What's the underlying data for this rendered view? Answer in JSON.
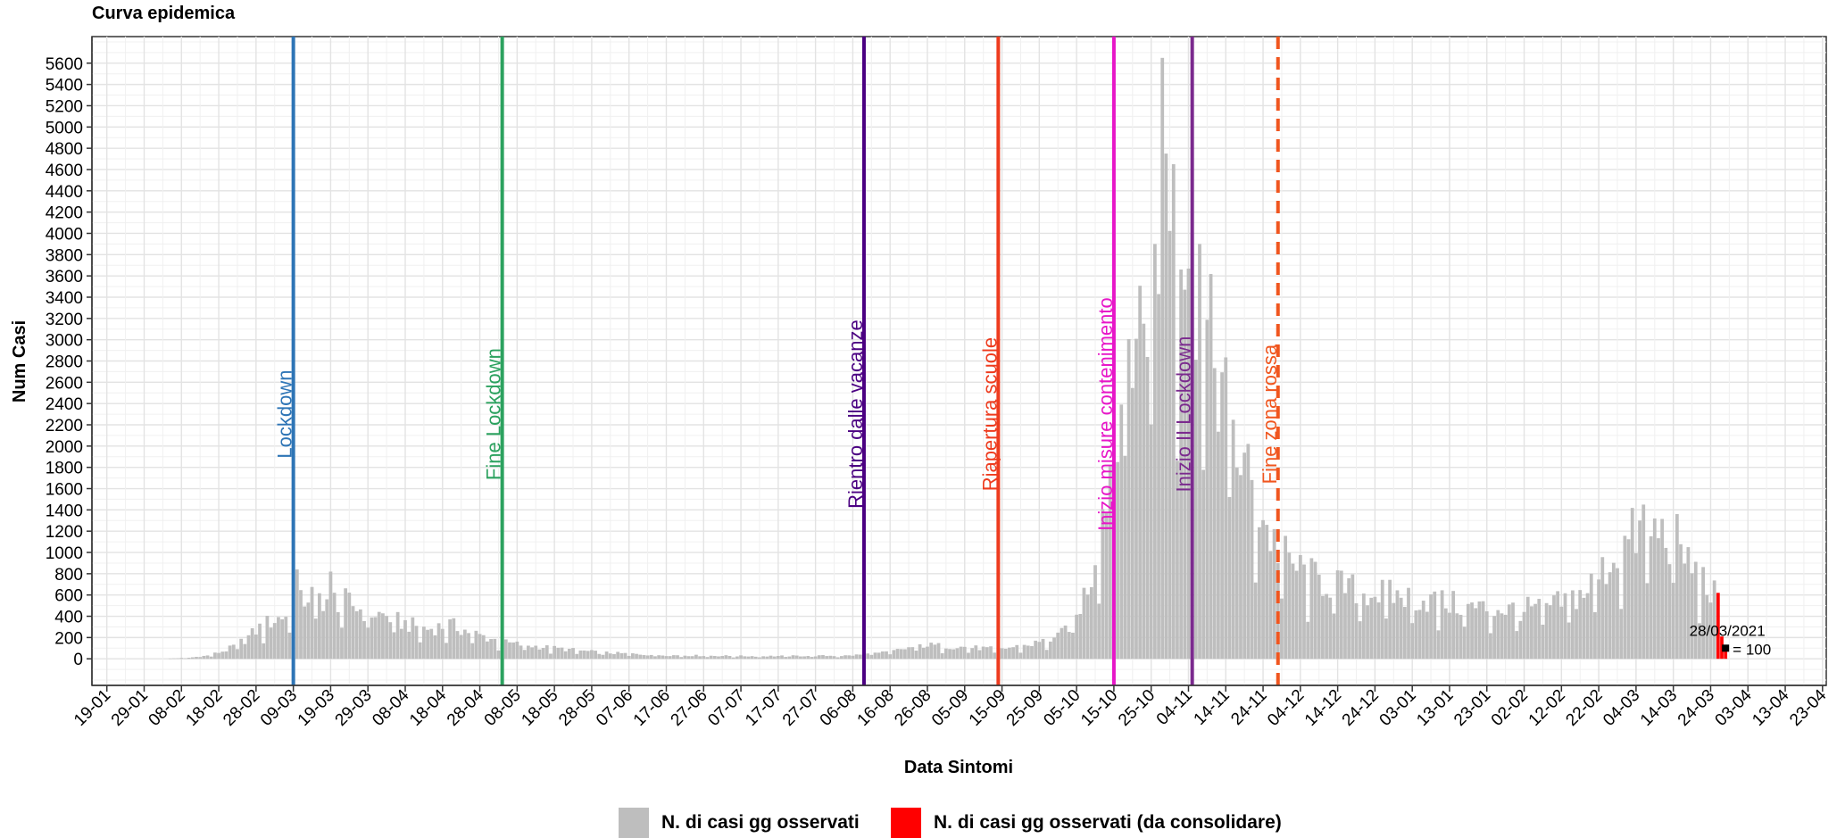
{
  "title": "Curva epidemica",
  "chart_data": {
    "type": "bar",
    "title": "Curva epidemica",
    "xlabel": "Data Sintomi",
    "ylabel": "Num Casi",
    "ylim": [
      -250,
      5850
    ],
    "yticks": [
      0,
      200,
      400,
      600,
      800,
      1000,
      1200,
      1400,
      1600,
      1800,
      2000,
      2200,
      2400,
      2600,
      2800,
      3000,
      3200,
      3400,
      3600,
      3800,
      4000,
      4200,
      4400,
      4600,
      4800,
      5000,
      5200,
      5400,
      5600
    ],
    "xlim": [
      "2020-01-15",
      "2021-04-24"
    ],
    "xticks": [
      {
        "date": "2020-01-19",
        "label": "19-01"
      },
      {
        "date": "2020-01-29",
        "label": "29-01"
      },
      {
        "date": "2020-02-08",
        "label": "08-02"
      },
      {
        "date": "2020-02-18",
        "label": "18-02"
      },
      {
        "date": "2020-02-28",
        "label": "28-02"
      },
      {
        "date": "2020-03-09",
        "label": "09-03"
      },
      {
        "date": "2020-03-19",
        "label": "19-03"
      },
      {
        "date": "2020-03-29",
        "label": "29-03"
      },
      {
        "date": "2020-04-08",
        "label": "08-04"
      },
      {
        "date": "2020-04-18",
        "label": "18-04"
      },
      {
        "date": "2020-04-28",
        "label": "28-04"
      },
      {
        "date": "2020-05-08",
        "label": "08-05"
      },
      {
        "date": "2020-05-18",
        "label": "18-05"
      },
      {
        "date": "2020-05-28",
        "label": "28-05"
      },
      {
        "date": "2020-06-07",
        "label": "07-06"
      },
      {
        "date": "2020-06-17",
        "label": "17-06"
      },
      {
        "date": "2020-06-27",
        "label": "27-06"
      },
      {
        "date": "2020-07-07",
        "label": "07-07"
      },
      {
        "date": "2020-07-17",
        "label": "17-07"
      },
      {
        "date": "2020-07-27",
        "label": "27-07"
      },
      {
        "date": "2020-08-06",
        "label": "06-08"
      },
      {
        "date": "2020-08-16",
        "label": "16-08"
      },
      {
        "date": "2020-08-26",
        "label": "26-08"
      },
      {
        "date": "2020-09-05",
        "label": "05-09"
      },
      {
        "date": "2020-09-15",
        "label": "15-09"
      },
      {
        "date": "2020-09-25",
        "label": "25-09"
      },
      {
        "date": "2020-10-05",
        "label": "05-10"
      },
      {
        "date": "2020-10-15",
        "label": "15-10"
      },
      {
        "date": "2020-10-25",
        "label": "25-10"
      },
      {
        "date": "2020-11-04",
        "label": "04-11"
      },
      {
        "date": "2020-11-14",
        "label": "14-11"
      },
      {
        "date": "2020-11-24",
        "label": "24-11"
      },
      {
        "date": "2020-12-04",
        "label": "04-12"
      },
      {
        "date": "2020-12-14",
        "label": "14-12"
      },
      {
        "date": "2020-12-24",
        "label": "24-12"
      },
      {
        "date": "2021-01-03",
        "label": "03-01"
      },
      {
        "date": "2021-01-13",
        "label": "13-01"
      },
      {
        "date": "2021-01-23",
        "label": "23-01"
      },
      {
        "date": "2021-02-02",
        "label": "02-02"
      },
      {
        "date": "2021-02-12",
        "label": "12-02"
      },
      {
        "date": "2021-02-22",
        "label": "22-02"
      },
      {
        "date": "2021-03-04",
        "label": "04-03"
      },
      {
        "date": "2021-03-14",
        "label": "14-03"
      },
      {
        "date": "2021-03-24",
        "label": "24-03"
      },
      {
        "date": "2021-04-03",
        "label": "03-04"
      },
      {
        "date": "2021-04-13",
        "label": "13-04"
      },
      {
        "date": "2021-04-23",
        "label": "23-04"
      }
    ],
    "grid": true,
    "legend_position": "bottom",
    "series": [
      {
        "name": "N. di casi gg osservati",
        "color": "#bebebe",
        "profile": [
          {
            "date": "2020-02-03",
            "value": 0
          },
          {
            "date": "2020-02-10",
            "value": 10
          },
          {
            "date": "2020-02-15",
            "value": 30
          },
          {
            "date": "2020-02-20",
            "value": 80
          },
          {
            "date": "2020-02-25",
            "value": 180
          },
          {
            "date": "2020-03-01",
            "value": 320
          },
          {
            "date": "2020-03-05",
            "value": 380
          },
          {
            "date": "2020-03-09",
            "value": 450
          },
          {
            "date": "2020-03-13",
            "value": 600
          },
          {
            "date": "2020-03-18",
            "value": 560
          },
          {
            "date": "2020-03-22",
            "value": 550
          },
          {
            "date": "2020-03-28",
            "value": 450
          },
          {
            "date": "2020-04-03",
            "value": 400
          },
          {
            "date": "2020-04-08",
            "value": 330
          },
          {
            "date": "2020-04-14",
            "value": 280
          },
          {
            "date": "2020-04-20",
            "value": 320
          },
          {
            "date": "2020-04-28",
            "value": 220
          },
          {
            "date": "2020-05-05",
            "value": 150
          },
          {
            "date": "2020-05-15",
            "value": 110
          },
          {
            "date": "2020-05-30",
            "value": 60
          },
          {
            "date": "2020-06-15",
            "value": 35
          },
          {
            "date": "2020-07-10",
            "value": 25
          },
          {
            "date": "2020-08-05",
            "value": 30
          },
          {
            "date": "2020-08-15",
            "value": 60
          },
          {
            "date": "2020-08-25",
            "value": 130
          },
          {
            "date": "2020-09-05",
            "value": 110
          },
          {
            "date": "2020-09-14",
            "value": 90
          },
          {
            "date": "2020-09-22",
            "value": 130
          },
          {
            "date": "2020-09-30",
            "value": 200
          },
          {
            "date": "2020-10-05",
            "value": 400
          },
          {
            "date": "2020-10-09",
            "value": 800
          },
          {
            "date": "2020-10-13",
            "value": 1600
          },
          {
            "date": "2020-10-18",
            "value": 2800
          },
          {
            "date": "2020-10-23",
            "value": 3300
          },
          {
            "date": "2020-10-28",
            "value": 4000
          },
          {
            "date": "2020-11-01",
            "value": 4300
          },
          {
            "date": "2020-11-05",
            "value": 3500
          },
          {
            "date": "2020-11-09",
            "value": 3000
          },
          {
            "date": "2020-11-13",
            "value": 2600
          },
          {
            "date": "2020-11-17",
            "value": 2000
          },
          {
            "date": "2020-11-21",
            "value": 1600
          },
          {
            "date": "2020-11-26",
            "value": 1150
          },
          {
            "date": "2020-12-01",
            "value": 900
          },
          {
            "date": "2020-12-08",
            "value": 750
          },
          {
            "date": "2020-12-18",
            "value": 650
          },
          {
            "date": "2020-12-28",
            "value": 600
          },
          {
            "date": "2021-01-08",
            "value": 550
          },
          {
            "date": "2021-01-20",
            "value": 480
          },
          {
            "date": "2021-02-01",
            "value": 460
          },
          {
            "date": "2021-02-10",
            "value": 500
          },
          {
            "date": "2021-02-18",
            "value": 620
          },
          {
            "date": "2021-02-25",
            "value": 900
          },
          {
            "date": "2021-03-03",
            "value": 1150
          },
          {
            "date": "2021-03-10",
            "value": 1200
          },
          {
            "date": "2021-03-15",
            "value": 1100
          },
          {
            "date": "2021-03-20",
            "value": 800
          },
          {
            "date": "2021-03-25",
            "value": 600
          }
        ],
        "peaks": [
          {
            "date": "2020-03-10",
            "value": 840
          },
          {
            "date": "2020-03-19",
            "value": 820
          },
          {
            "date": "2020-10-16",
            "value": 1850
          },
          {
            "date": "2020-10-26",
            "value": 3900
          },
          {
            "date": "2020-10-28",
            "value": 5650
          },
          {
            "date": "2020-10-29",
            "value": 4750
          },
          {
            "date": "2020-10-31",
            "value": 4650
          },
          {
            "date": "2020-11-07",
            "value": 3900
          },
          {
            "date": "2021-03-06",
            "value": 1450
          }
        ]
      },
      {
        "name": "N. di casi gg osservati (da consolidare)",
        "color": "#ff0000",
        "points": [
          {
            "date": "2021-03-26",
            "value": 620
          },
          {
            "date": "2021-03-27",
            "value": 210
          },
          {
            "date": "2021-03-28",
            "value": 100
          }
        ]
      }
    ],
    "vlines": [
      {
        "date": "2020-03-09",
        "label": "Lockdown",
        "color": "#2e75b6",
        "dashed": false
      },
      {
        "date": "2020-05-04",
        "label": "Fine Lockdown",
        "color": "#2ca25f",
        "dashed": false
      },
      {
        "date": "2020-08-09",
        "label": "Rientro dalle vacanze",
        "color": "#4b0082",
        "dashed": false
      },
      {
        "date": "2020-09-14",
        "label": "Riapertura scuole",
        "color": "#ee3b1e",
        "dashed": false
      },
      {
        "date": "2020-10-15",
        "label": "Inizio misure contenimento",
        "color": "#e716c8",
        "dashed": false
      },
      {
        "date": "2020-11-05",
        "label": "Inizio II Lockdown",
        "color": "#7b2a8e",
        "dashed": false
      },
      {
        "date": "2020-11-28",
        "label": "Fine zona rossa",
        "color": "#f0561f",
        "dashed": true
      }
    ],
    "annotation": {
      "date_label": "28/03/2021",
      "value_label": "= 100",
      "value": 100
    }
  },
  "legend": [
    {
      "label": "N. di casi gg osservati",
      "color": "#bebebe"
    },
    {
      "label": "N. di casi gg osservati (da consolidare)",
      "color": "#ff0000"
    }
  ]
}
